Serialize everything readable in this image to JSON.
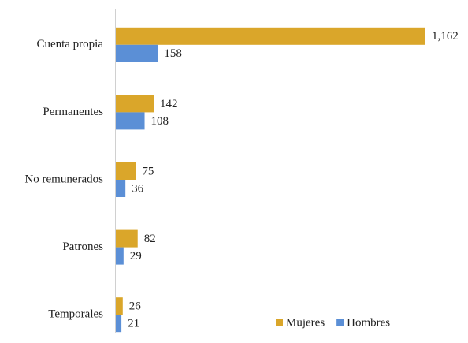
{
  "chart_data": {
    "type": "bar",
    "orientation": "horizontal",
    "categories": [
      "Cuenta propia",
      "Permanentes",
      "No remunerados",
      "Patrones",
      "Temporales"
    ],
    "series": [
      {
        "name": "Mujeres",
        "color": "#daa62a",
        "values": [
          1162,
          142,
          75,
          82,
          26
        ],
        "value_labels": [
          "1,162",
          "142",
          "75",
          "82",
          "26"
        ]
      },
      {
        "name": "Hombres",
        "color": "#5b8fd6",
        "values": [
          158,
          108,
          36,
          29,
          21
        ]
      }
    ],
    "legend": "bottom-right"
  }
}
